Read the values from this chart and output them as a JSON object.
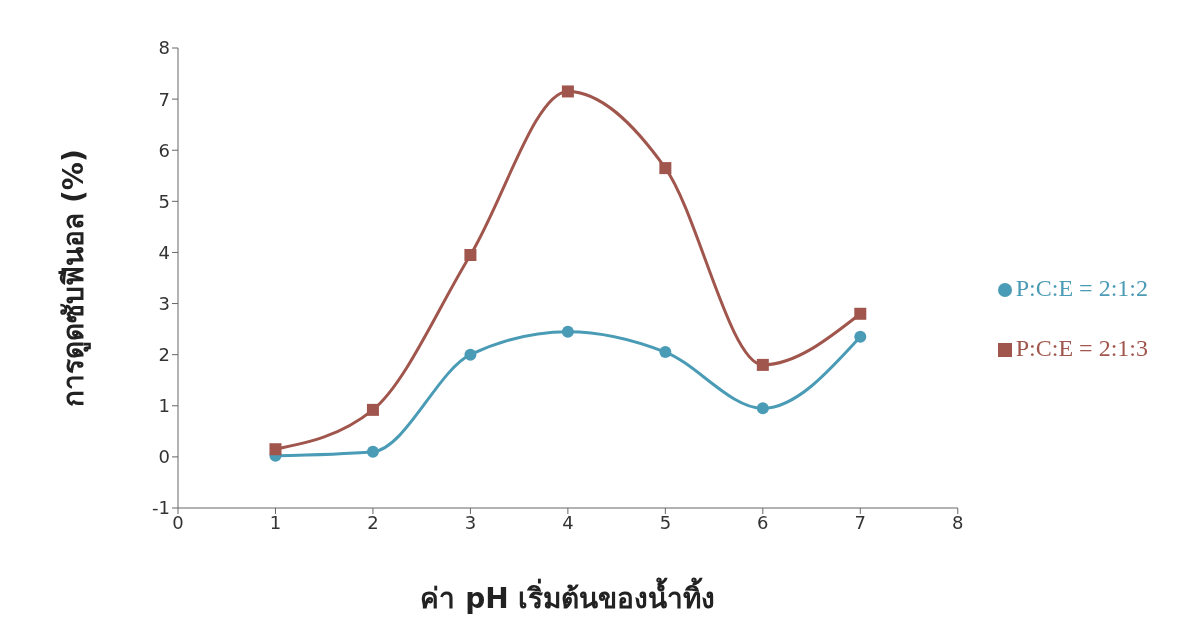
{
  "chart_data": {
    "type": "line",
    "xlabel": "ค่า pH เริ่มต้นของน้ำทิ้ง",
    "ylabel": "การดูดซับฟีนอล (%)",
    "x": [
      1,
      2,
      3,
      4,
      5,
      6,
      7
    ],
    "series": [
      {
        "name": "P:C:E = 2:1:2",
        "color": "#4a9bb5",
        "marker": "circle",
        "values": [
          0.02,
          0.1,
          2.0,
          2.45,
          2.05,
          0.95,
          2.35
        ]
      },
      {
        "name": "P:C:E = 2:1:3",
        "color": "#a0564c",
        "marker": "square",
        "values": [
          0.15,
          0.92,
          3.95,
          7.15,
          5.65,
          1.8,
          2.8
        ]
      }
    ],
    "xlim": [
      0,
      8
    ],
    "xticks": [
      0,
      1,
      2,
      3,
      4,
      5,
      6,
      7,
      8
    ],
    "ylim": [
      -1,
      8
    ],
    "yticks": [
      -1,
      0,
      1,
      2,
      3,
      4,
      5,
      6,
      7,
      8
    ],
    "grid": false,
    "legend": "right"
  }
}
